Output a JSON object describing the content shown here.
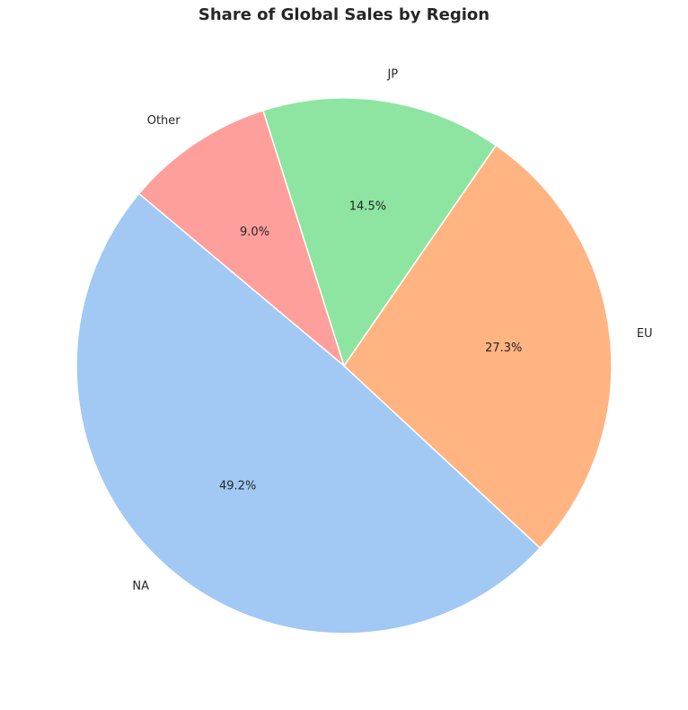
{
  "chart_data": {
    "type": "pie",
    "title": "Share of Global Sales by Region",
    "categories": [
      "NA",
      "EU",
      "JP",
      "Other"
    ],
    "values": [
      49.2,
      27.3,
      14.5,
      9.0
    ],
    "percent_labels": [
      "49.2%",
      "27.3%",
      "14.5%",
      "9.0%"
    ],
    "colors": [
      "#a1c9f4",
      "#ffb482",
      "#8de5a1",
      "#ff9f9b"
    ],
    "start_angle_deg": 140,
    "direction": "counterclockwise"
  }
}
